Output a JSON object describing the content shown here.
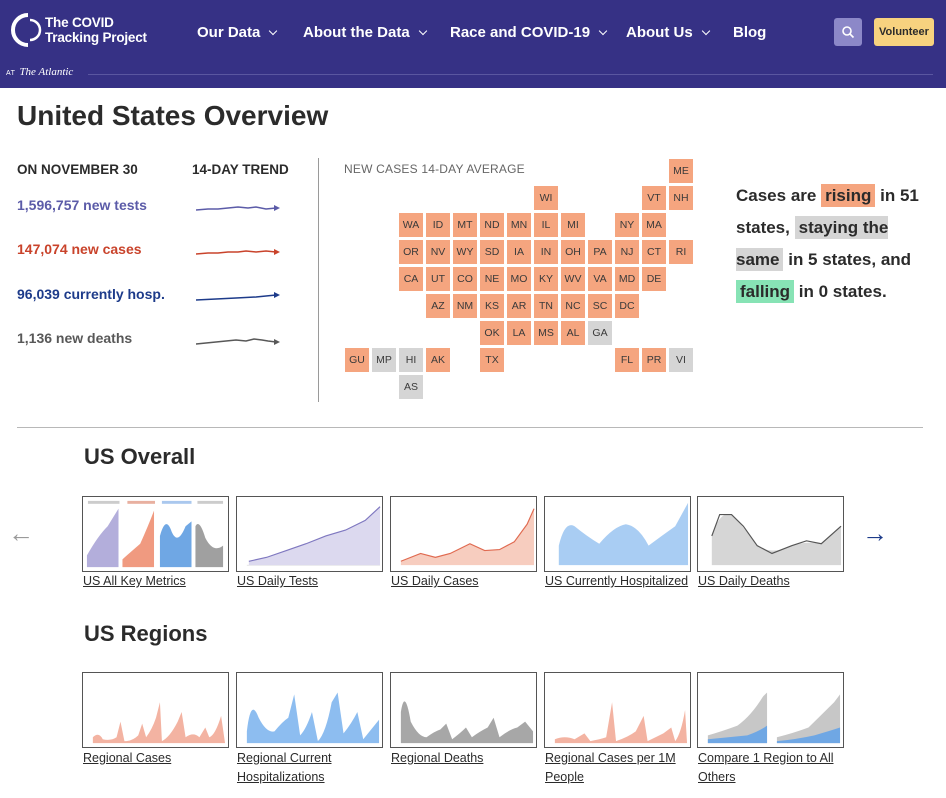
{
  "header": {
    "logo_line1": "The COVID",
    "logo_line2": "Tracking Project",
    "atlantic_at": "AT",
    "atlantic_name": "The Atlantic",
    "nav": [
      {
        "label": "Our Data",
        "has_dropdown": true
      },
      {
        "label": "About the Data",
        "has_dropdown": true
      },
      {
        "label": "Race and COVID-19",
        "has_dropdown": true
      },
      {
        "label": "About Us",
        "has_dropdown": true
      },
      {
        "label": "Blog",
        "has_dropdown": false
      }
    ],
    "search_icon": "search-icon",
    "volunteer_label": "Volunteer"
  },
  "overview": {
    "title": "United States Overview",
    "date_label": "ON NOVEMBER 30",
    "trend_label": "14-DAY TREND",
    "stats": [
      {
        "text": "1,596,757 new tests",
        "color": "#5b5ba8"
      },
      {
        "text": "147,074 new cases",
        "color": "#c9432b"
      },
      {
        "text": "96,039 currently hosp.",
        "color": "#1d3b8a"
      },
      {
        "text": "1,136 new deaths",
        "color": "#585858"
      }
    ],
    "map_label": "NEW CASES 14-DAY AVERAGE",
    "map_colors": {
      "rising": "#f5a57f",
      "same": "#d5d5d5"
    },
    "states": [
      {
        "abbr": "ME",
        "status": "rising"
      },
      {
        "abbr": "WI",
        "status": "rising"
      },
      {
        "abbr": "VT",
        "status": "rising"
      },
      {
        "abbr": "NH",
        "status": "rising"
      },
      {
        "abbr": "WA",
        "status": "rising"
      },
      {
        "abbr": "ID",
        "status": "rising"
      },
      {
        "abbr": "MT",
        "status": "rising"
      },
      {
        "abbr": "ND",
        "status": "rising"
      },
      {
        "abbr": "MN",
        "status": "rising"
      },
      {
        "abbr": "IL",
        "status": "rising"
      },
      {
        "abbr": "MI",
        "status": "rising"
      },
      {
        "abbr": "NY",
        "status": "rising"
      },
      {
        "abbr": "MA",
        "status": "rising"
      },
      {
        "abbr": "OR",
        "status": "rising"
      },
      {
        "abbr": "NV",
        "status": "rising"
      },
      {
        "abbr": "WY",
        "status": "rising"
      },
      {
        "abbr": "SD",
        "status": "rising"
      },
      {
        "abbr": "IA",
        "status": "rising"
      },
      {
        "abbr": "IN",
        "status": "rising"
      },
      {
        "abbr": "OH",
        "status": "rising"
      },
      {
        "abbr": "PA",
        "status": "rising"
      },
      {
        "abbr": "NJ",
        "status": "rising"
      },
      {
        "abbr": "CT",
        "status": "rising"
      },
      {
        "abbr": "RI",
        "status": "rising"
      },
      {
        "abbr": "CA",
        "status": "rising"
      },
      {
        "abbr": "UT",
        "status": "rising"
      },
      {
        "abbr": "CO",
        "status": "rising"
      },
      {
        "abbr": "NE",
        "status": "rising"
      },
      {
        "abbr": "MO",
        "status": "rising"
      },
      {
        "abbr": "KY",
        "status": "rising"
      },
      {
        "abbr": "WV",
        "status": "rising"
      },
      {
        "abbr": "VA",
        "status": "rising"
      },
      {
        "abbr": "MD",
        "status": "rising"
      },
      {
        "abbr": "DE",
        "status": "rising"
      },
      {
        "abbr": "AZ",
        "status": "rising"
      },
      {
        "abbr": "NM",
        "status": "rising"
      },
      {
        "abbr": "KS",
        "status": "rising"
      },
      {
        "abbr": "AR",
        "status": "rising"
      },
      {
        "abbr": "TN",
        "status": "rising"
      },
      {
        "abbr": "NC",
        "status": "rising"
      },
      {
        "abbr": "SC",
        "status": "rising"
      },
      {
        "abbr": "DC",
        "status": "rising"
      },
      {
        "abbr": "OK",
        "status": "rising"
      },
      {
        "abbr": "LA",
        "status": "rising"
      },
      {
        "abbr": "MS",
        "status": "rising"
      },
      {
        "abbr": "AL",
        "status": "rising"
      },
      {
        "abbr": "GA",
        "status": "same"
      },
      {
        "abbr": "GU",
        "status": "rising"
      },
      {
        "abbr": "MP",
        "status": "same"
      },
      {
        "abbr": "HI",
        "status": "same"
      },
      {
        "abbr": "AK",
        "status": "rising"
      },
      {
        "abbr": "TX",
        "status": "rising"
      },
      {
        "abbr": "FL",
        "status": "rising"
      },
      {
        "abbr": "PR",
        "status": "rising"
      },
      {
        "abbr": "VI",
        "status": "same"
      },
      {
        "abbr": "AS",
        "status": "same"
      }
    ],
    "summary": {
      "p1": "Cases are",
      "rising": "rising",
      "p2": "in 51 states,",
      "same": "staying the same",
      "p3": "in 5 states, and",
      "falling": "falling",
      "p4": "in 0 states."
    }
  },
  "us_overall": {
    "title": "US Overall",
    "prev_arrow": "←",
    "next_arrow": "→",
    "thumbnails": [
      {
        "label": "US All Key Metrics",
        "kind": "multi"
      },
      {
        "label": "US Daily Tests",
        "kind": "tests"
      },
      {
        "label": "US Daily Cases",
        "kind": "cases"
      },
      {
        "label": "US Currently Hospitalized",
        "kind": "hosp"
      },
      {
        "label": "US Daily Deaths",
        "kind": "deaths"
      }
    ]
  },
  "us_regions": {
    "title": "US Regions",
    "thumbnails": [
      {
        "label": "Regional Cases",
        "kind": "reg-cases"
      },
      {
        "label": "Regional Current Hospitalizations",
        "kind": "reg-hosp"
      },
      {
        "label": "Regional Deaths",
        "kind": "reg-deaths"
      },
      {
        "label": "Regional Cases per 1M People",
        "kind": "reg-cases-1m"
      },
      {
        "label": "Compare 1 Region to All Others",
        "kind": "compare"
      }
    ]
  }
}
